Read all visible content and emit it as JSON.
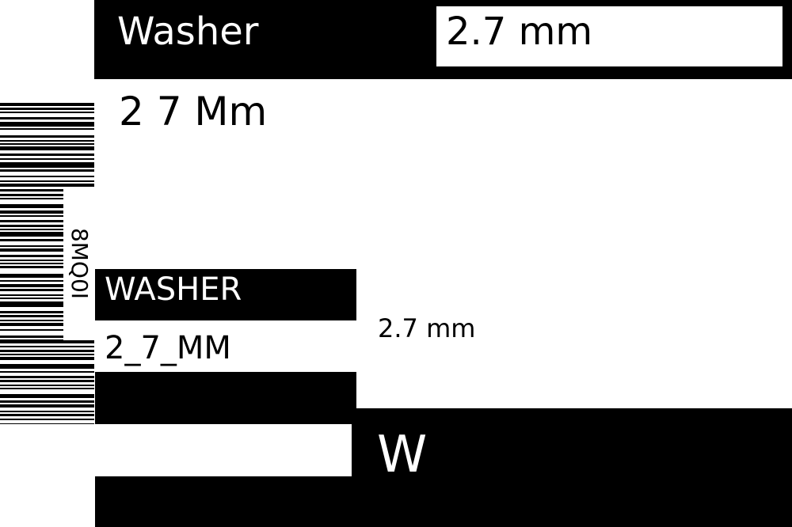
{
  "label": {
    "header_title": "Washer",
    "header_value": "2.7 mm",
    "subtitle": "2 7 Mm",
    "barcode_text": "8MQ0I",
    "name_upper": "WASHER",
    "code": "2_7_MM",
    "size": "2.7 mm",
    "initial": "W"
  },
  "colors": {
    "ink": "#000000",
    "paper": "#ffffff"
  }
}
